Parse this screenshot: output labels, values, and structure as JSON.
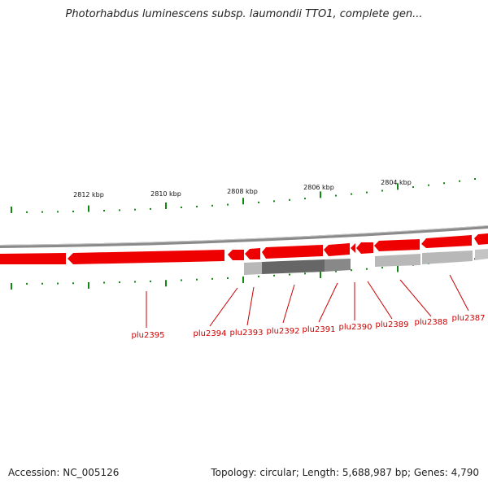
{
  "title": "Photorhabdus luminescens subsp. laumondii TTO1, complete gen...",
  "footer": {
    "accession": "Accession: NC_005126",
    "stats": "Topology: circular; Length: 5,688,987 bp; Genes: 4,790"
  },
  "colors": {
    "forward_gene": "#ee0000",
    "hit_dark": "#666666",
    "hit_light": "#b8b8b8",
    "backbone": "#8a8a8a",
    "tick": "#118811",
    "label": "#cc0000"
  },
  "scale_labels": [
    "2812 kbp",
    "2810 kbp",
    "2808 kbp",
    "2806 kbp",
    "2804 kbp"
  ],
  "gene_labels": [
    "plu2395",
    "plu2394",
    "plu2393",
    "plu2392",
    "plu2391",
    "plu2390",
    "plu2389",
    "plu2388",
    "plu2387"
  ]
}
